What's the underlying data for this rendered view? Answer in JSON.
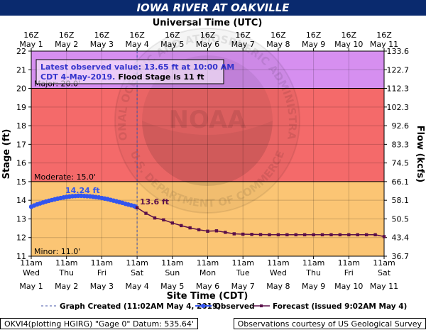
{
  "title": "IOWA RIVER AT OAKVILLE",
  "top_axis_title": "Universal Time (UTC)",
  "bottom_axis_title": "Site Time (CDT)",
  "left_axis_title": "Stage (ft)",
  "right_axis_title": "Flow (kcfs)",
  "top_ticks": [
    {
      "l1": "16Z",
      "l2": "May 1"
    },
    {
      "l1": "16Z",
      "l2": "May 2"
    },
    {
      "l1": "16Z",
      "l2": "May 3"
    },
    {
      "l1": "16Z",
      "l2": "May 4"
    },
    {
      "l1": "16Z",
      "l2": "May 5"
    },
    {
      "l1": "16Z",
      "l2": "May 6"
    },
    {
      "l1": "16Z",
      "l2": "May 7"
    },
    {
      "l1": "16Z",
      "l2": "May 8"
    },
    {
      "l1": "16Z",
      "l2": "May 9"
    },
    {
      "l1": "16Z",
      "l2": "May 10"
    },
    {
      "l1": "16Z",
      "l2": "May 11"
    }
  ],
  "bottom_ticks": [
    {
      "l1": "11am",
      "l2": "Wed",
      "l3": "May 1"
    },
    {
      "l1": "11am",
      "l2": "Thu",
      "l3": "May 2"
    },
    {
      "l1": "11am",
      "l2": "Fri",
      "l3": "May 3"
    },
    {
      "l1": "11am",
      "l2": "Sat",
      "l3": "May 4"
    },
    {
      "l1": "11am",
      "l2": "Sun",
      "l3": "May 5"
    },
    {
      "l1": "11am",
      "l2": "Mon",
      "l3": "May 6"
    },
    {
      "l1": "11am",
      "l2": "Tue",
      "l3": "May 7"
    },
    {
      "l1": "11am",
      "l2": "Wed",
      "l3": "May 8"
    },
    {
      "l1": "11am",
      "l2": "Thu",
      "l3": "May 9"
    },
    {
      "l1": "11am",
      "l2": "Fri",
      "l3": "May 10"
    },
    {
      "l1": "11am",
      "l2": "Sat",
      "l3": "May 11"
    }
  ],
  "info_box": {
    "line1": "Latest observed value: 13.65 ft at 10:00 AM",
    "line2_a": "CDT 4-May-2019.",
    "line2_b": "Flood Stage is 11 ft"
  },
  "zones": [
    {
      "label": "Major: 20.0'",
      "from": 20,
      "to": 22,
      "color": "#d68ff0"
    },
    {
      "label": "Moderate: 15.0'",
      "from": 15,
      "to": 20,
      "color": "#f46a6a"
    },
    {
      "label": "Minor: 11.0'",
      "from": 11,
      "to": 15,
      "color": "#fbc574"
    }
  ],
  "watermark": {
    "logo_text": "NOAA",
    "ring_text": "NATIONAL OCEANIC AND ATMOSPHERIC ADMINISTRATION",
    "ring_text_bottom": "U.S. DEPARTMENT OF COMMERCE"
  },
  "annotations": {
    "peak": "14.24 ft",
    "forecast_start": "13.6 ft"
  },
  "legend": {
    "graph_created": "Graph Created (11:02AM May 4, 2019)",
    "observed": "Observed",
    "forecast": "Forecast (issued 9:02AM May 4)"
  },
  "footer": {
    "left": "OKVI4(plotting HGIRG) \"Gage 0\" Datum:  535.64'",
    "right": "Observations courtesy of US Geological Survey"
  },
  "colors": {
    "title_bg": "#0a2a6e",
    "observed": "#3355ee",
    "forecast": "#5a0f4a",
    "info_text": "#3333cc"
  },
  "chart_data": {
    "type": "line",
    "x_unit": "days since May 1, 11am CDT",
    "ylim_stage": [
      11,
      22
    ],
    "y_ticks_stage": [
      11,
      12,
      13,
      14,
      15,
      16,
      17,
      18,
      19,
      20,
      21,
      22
    ],
    "y_ticks_flow": [
      "36.7",
      "43.4",
      "50.5",
      "58.1",
      "66.1",
      "74.5",
      "83.3",
      "92.6",
      "102.3",
      "112.3",
      "122.7",
      "133.6"
    ],
    "graph_created_x": 3.0,
    "series": [
      {
        "name": "Observed",
        "points": [
          [
            0.0,
            13.65
          ],
          [
            0.083,
            13.72
          ],
          [
            0.167,
            13.78
          ],
          [
            0.25,
            13.83
          ],
          [
            0.333,
            13.88
          ],
          [
            0.417,
            13.93
          ],
          [
            0.5,
            13.97
          ],
          [
            0.583,
            14.01
          ],
          [
            0.667,
            14.05
          ],
          [
            0.75,
            14.09
          ],
          [
            0.833,
            14.12
          ],
          [
            0.917,
            14.15
          ],
          [
            1.0,
            14.18
          ],
          [
            1.083,
            14.2
          ],
          [
            1.167,
            14.22
          ],
          [
            1.25,
            14.23
          ],
          [
            1.333,
            14.24
          ],
          [
            1.417,
            14.24
          ],
          [
            1.5,
            14.23
          ],
          [
            1.583,
            14.22
          ],
          [
            1.667,
            14.21
          ],
          [
            1.75,
            14.19
          ],
          [
            1.833,
            14.17
          ],
          [
            1.917,
            14.15
          ],
          [
            2.0,
            14.12
          ],
          [
            2.083,
            14.09
          ],
          [
            2.167,
            14.06
          ],
          [
            2.25,
            14.02
          ],
          [
            2.333,
            13.98
          ],
          [
            2.417,
            13.94
          ],
          [
            2.5,
            13.9
          ],
          [
            2.583,
            13.86
          ],
          [
            2.667,
            13.81
          ],
          [
            2.75,
            13.77
          ],
          [
            2.833,
            13.73
          ],
          [
            2.917,
            13.69
          ],
          [
            2.958,
            13.65
          ]
        ]
      },
      {
        "name": "Forecast",
        "points": [
          [
            3.0,
            13.6
          ],
          [
            3.25,
            13.3
          ],
          [
            3.5,
            13.05
          ],
          [
            3.75,
            12.95
          ],
          [
            4.0,
            12.78
          ],
          [
            4.25,
            12.64
          ],
          [
            4.5,
            12.52
          ],
          [
            4.75,
            12.42
          ],
          [
            5.0,
            12.34
          ],
          [
            5.25,
            12.36
          ],
          [
            5.5,
            12.28
          ],
          [
            5.75,
            12.2
          ],
          [
            6.0,
            12.18
          ],
          [
            6.25,
            12.17
          ],
          [
            6.5,
            12.16
          ],
          [
            6.75,
            12.15
          ],
          [
            7.0,
            12.15
          ],
          [
            7.25,
            12.15
          ],
          [
            7.5,
            12.15
          ],
          [
            7.75,
            12.15
          ],
          [
            8.0,
            12.15
          ],
          [
            8.25,
            12.15
          ],
          [
            8.5,
            12.15
          ],
          [
            8.75,
            12.15
          ],
          [
            9.0,
            12.15
          ],
          [
            9.25,
            12.15
          ],
          [
            9.5,
            12.15
          ],
          [
            9.75,
            12.15
          ],
          [
            10.0,
            12.05
          ]
        ]
      }
    ]
  }
}
